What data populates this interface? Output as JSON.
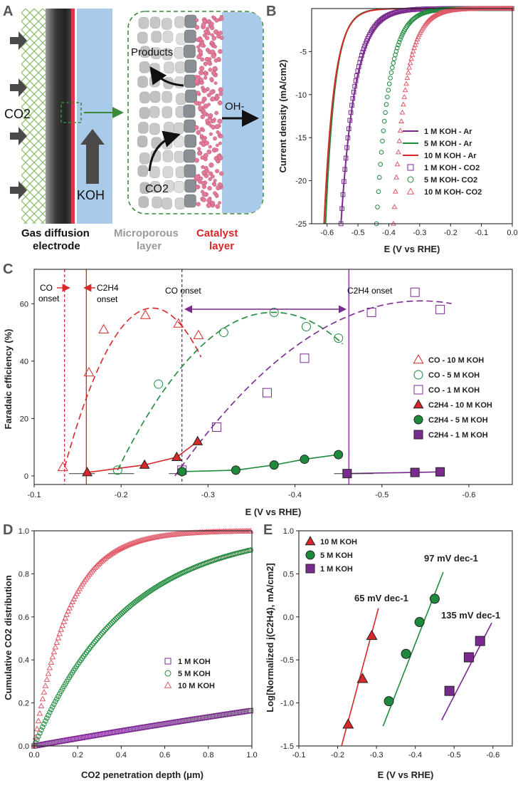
{
  "panel_a": {
    "letter": "A",
    "co2": "CO2",
    "koh": "KOH",
    "products": "Products",
    "oh": "OH-",
    "co2_inner": "CO2",
    "labels": {
      "gde_1": "Gas diffusion",
      "gde_2": "electrode",
      "micro_1": "Microporous",
      "micro_2": "layer",
      "cat_1": "Catalyst",
      "cat_2": "layer"
    },
    "colors": {
      "gde": "#555555",
      "catalyst": "#e0364a",
      "electrolyte": "#a9cbe9",
      "micro": "#999999",
      "mesh": "#8fbf6e"
    }
  },
  "chart_data": [
    {
      "panel": "B",
      "type": "line",
      "xlabel": "E (V vs RHE)",
      "ylabel": "Current density (mA/cm2)",
      "xlim": [
        -0.65,
        0.0
      ],
      "ylim": [
        -25,
        0
      ],
      "xticks": [
        -0.6,
        -0.5,
        -0.4,
        -0.3,
        -0.2,
        -0.1,
        0.0
      ],
      "yticks": [
        -5,
        -10,
        -15,
        -20,
        -25
      ],
      "series": [
        {
          "name": "1 M KOH - Ar",
          "style": "line",
          "color": "#7a2a8f",
          "onset": -0.555,
          "scale": 0.21,
          "amp": 0.6,
          "exp": 1.25
        },
        {
          "name": "5 M KOH - Ar",
          "style": "line",
          "color": "#1e8a3c",
          "onset": -0.605,
          "scale": 0.14,
          "amp": 0.9,
          "exp": 1.3
        },
        {
          "name": "10 M KOH - Ar",
          "style": "line",
          "color": "#d62828",
          "onset": -0.61,
          "scale": 0.15,
          "amp": 0.8,
          "exp": 1.3
        },
        {
          "name": "1 M KOH - CO2",
          "style": "square",
          "color": "#7a2a8f",
          "onset": -0.555,
          "scale": 0.2,
          "amp": 0.7,
          "exp": 1.25
        },
        {
          "name": "5 M KOH- CO2",
          "style": "circle",
          "color": "#1e8a3c",
          "onset": -0.44,
          "scale": 0.18,
          "amp": 1.0,
          "exp": 1.35
        },
        {
          "name": "10 M KOH- CO2",
          "style": "triangle",
          "color": "#e05a6a",
          "onset": -0.385,
          "scale": 0.18,
          "amp": 1.1,
          "exp": 1.4
        }
      ]
    },
    {
      "panel": "C",
      "type": "scatter",
      "xlabel": "E (V vs RHE)",
      "ylabel": "Faradaic efficiency (%)",
      "xlim": [
        -0.1,
        -0.65
      ],
      "ylim": [
        -3,
        72
      ],
      "xticks": [
        -0.1,
        -0.2,
        -0.3,
        -0.4,
        -0.5,
        -0.6
      ],
      "yticks": [
        0,
        20,
        40,
        60
      ],
      "series": [
        {
          "name": "CO - 10 M KOH",
          "marker": "triangle",
          "filled": false,
          "color": "#d62828",
          "x": [
            -0.133,
            -0.163,
            -0.18,
            -0.228,
            -0.266,
            -0.289
          ],
          "y": [
            3,
            36,
            51,
            56,
            53,
            49
          ]
        },
        {
          "name": "CO - 5 M KOH",
          "marker": "circle",
          "filled": false,
          "color": "#1e8a3c",
          "x": [
            -0.196,
            -0.243,
            -0.318,
            -0.376,
            -0.413,
            -0.45
          ],
          "y": [
            2,
            32,
            50,
            57,
            52,
            48
          ]
        },
        {
          "name": "CO - 1 M KOH",
          "marker": "square",
          "filled": false,
          "color": "#7a2a8f",
          "x": [
            -0.27,
            -0.31,
            -0.368,
            -0.411,
            -0.488,
            -0.538,
            -0.567
          ],
          "y": [
            2,
            17,
            29,
            41,
            57,
            64,
            58
          ]
        },
        {
          "name": "C2H4 - 10 M KOH",
          "marker": "triangle",
          "filled": true,
          "color": "#d62828",
          "x": [
            -0.161,
            -0.227,
            -0.264,
            -0.288
          ],
          "y": [
            1.2,
            3.8,
            6.5,
            12
          ]
        },
        {
          "name": "C2H4 - 5 M KOH",
          "marker": "circle",
          "filled": true,
          "color": "#1e8a3c",
          "x": [
            -0.27,
            -0.332,
            -0.376,
            -0.411,
            -0.45
          ],
          "y": [
            1.5,
            2,
            3.8,
            5.8,
            7.4
          ]
        },
        {
          "name": "C2H4 - 1 M KOH",
          "marker": "square",
          "filled": true,
          "color": "#7a2a8f",
          "x": [
            -0.46,
            -0.538,
            -0.567
          ],
          "y": [
            0.8,
            1.2,
            1.4
          ]
        }
      ],
      "fits": [
        {
          "color": "#d62828",
          "x0": -0.135,
          "x1": -0.292,
          "peak_x": -0.236,
          "peak_y": 58.5,
          "start_y": 3
        },
        {
          "color": "#1e8a3c",
          "x0": -0.196,
          "x1": -0.455,
          "peak_x": -0.375,
          "peak_y": 57,
          "start_y": 2
        },
        {
          "color": "#7a2a8f",
          "x0": -0.262,
          "x1": -0.58,
          "peak_x": -0.545,
          "peak_y": 61,
          "start_y": 0
        }
      ],
      "vlines": [
        {
          "x": -0.135,
          "color": "#d62828",
          "dash": true
        },
        {
          "x": -0.16,
          "color": "#d62828",
          "dash": false
        },
        {
          "x": -0.27,
          "color": "#7a2a8f",
          "dash": true
        },
        {
          "x": -0.462,
          "color": "#7a2a8f",
          "dash": false
        }
      ],
      "annotations": {
        "co_onset_a": "CO",
        "co_onset_b": "onset",
        "c2h4_onset_a": "C2H4",
        "c2h4_onset_b": "onset",
        "co_onset_mid": "CO onset",
        "c2h4_onset_right": "C2H4 onset"
      }
    },
    {
      "panel": "D",
      "type": "scatter",
      "xlabel": "CO2 penetration depth (μm)",
      "ylabel": "Cumulative CO2 distribution",
      "xlim": [
        0,
        1.0
      ],
      "ylim": [
        0,
        1.0
      ],
      "xticks": [
        0.0,
        0.2,
        0.4,
        0.6,
        0.8,
        1.0
      ],
      "yticks": [
        0.0,
        0.2,
        0.4,
        0.6,
        0.8,
        1.0
      ],
      "series": [
        {
          "name": "1 M KOH",
          "marker": "square",
          "color": "#7a2a8f",
          "k": 0.19,
          "endval": 0.165
        },
        {
          "name": "5 M KOH",
          "marker": "circle",
          "color": "#1e8a3c",
          "k": 2.35,
          "endval": 0.912
        },
        {
          "name": "10 M KOH",
          "marker": "triangle",
          "color": "#e05a6a",
          "k": 6.3,
          "endval": 0.998
        }
      ]
    },
    {
      "panel": "E",
      "type": "scatter",
      "xlabel": "E (V vs RHE)",
      "ylabel": "Log[Normalized j(C2H4), mA/cm2]",
      "xlim": [
        -0.1,
        -0.65
      ],
      "ylim": [
        -1.5,
        1.0
      ],
      "xticks": [
        -0.1,
        -0.2,
        -0.3,
        -0.4,
        -0.5,
        -0.6
      ],
      "yticks": [
        1.0,
        0.5,
        0.0,
        -0.5,
        -1.0,
        -1.5
      ],
      "series": [
        {
          "name": "10 M KOH",
          "marker": "triangle",
          "color": "#d62828",
          "x": [
            -0.227,
            -0.264,
            -0.288
          ],
          "y": [
            -1.25,
            -0.72,
            -0.22
          ],
          "slope_label": "65 mV dec-1"
        },
        {
          "name": "5 M KOH",
          "marker": "circle",
          "color": "#1e8a3c",
          "x": [
            -0.332,
            -0.376,
            -0.411,
            -0.45
          ],
          "y": [
            -0.98,
            -0.43,
            -0.06,
            0.21
          ],
          "slope_label": "97 mV dec-1"
        },
        {
          "name": "1 M KOH",
          "marker": "square",
          "color": "#7a2a8f",
          "x": [
            -0.488,
            -0.538,
            -0.567
          ],
          "y": [
            -0.86,
            -0.47,
            -0.28
          ],
          "slope_label": "135 mV dec-1"
        }
      ],
      "fits": [
        {
          "color": "#d62828",
          "x0": -0.21,
          "y0": -1.5,
          "x1": -0.305,
          "y1": 0.1
        },
        {
          "color": "#1e8a3c",
          "x0": -0.317,
          "y0": -1.27,
          "x1": -0.472,
          "y1": 0.52
        },
        {
          "color": "#7a2a8f",
          "x0": -0.468,
          "y0": -1.2,
          "x1": -0.597,
          "y1": -0.07
        }
      ]
    }
  ]
}
